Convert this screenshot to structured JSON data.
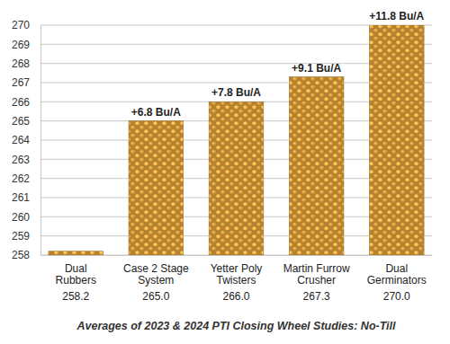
{
  "chart_data": {
    "type": "bar",
    "caption": "Averages of 2023 & 2024 PTI Closing Wheel Studies: No-Till",
    "categories": [
      "Dual\nRubbers",
      "Case 2 Stage\nSystem",
      "Yetter Poly\nTwisters",
      "Martin Furrow\nCrusher",
      "Dual\nGerminators"
    ],
    "values": [
      258.2,
      265.0,
      266.0,
      267.3,
      270.0
    ],
    "value_labels": [
      "258.2",
      "265.0",
      "266.0",
      "267.3",
      "270.0"
    ],
    "data_labels": true,
    "annotations": [
      {
        "category": "Case 2 Stage\nSystem",
        "text": "+6.8 Bu/A"
      },
      {
        "category": "Yetter Poly\nTwisters",
        "text": "+7.8 Bu/A"
      },
      {
        "category": "Martin Furrow\nCrusher",
        "text": "+9.1 Bu/A"
      },
      {
        "category": "Dual\nGerminators",
        "text": "+11.8 Bu/A"
      }
    ],
    "color": "#e0a13a",
    "ylim": [
      258,
      270
    ],
    "yticks": [
      258,
      259,
      260,
      261,
      262,
      263,
      264,
      265,
      266,
      267,
      268,
      269,
      270
    ],
    "grid": true
  }
}
